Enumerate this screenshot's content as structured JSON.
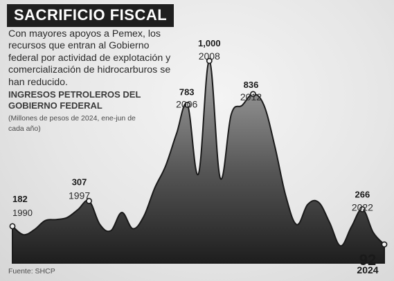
{
  "header": {
    "title": "SACRIFICIO FISCAL",
    "intro": "Con mayores apoyos a Pemex, los recursos que entran al Gobierno federal por actividad de explotación y comercialización de hidrocarburos se han reducido.",
    "chart_title": "INGRESOS PETROLEROS DEL GOBIERNO FEDERAL",
    "chart_subtitle": "(Millones de pesos de 2024, ene-jun de cada año)",
    "source": "Fuente: SHCP"
  },
  "colors": {
    "area_dark": "#2b2b2b",
    "area_light": "#9a9a9a",
    "title_bg": "#1f1f1f"
  },
  "chart_data": {
    "type": "area",
    "title": "INGRESOS PETROLEROS DEL GOBIERNO FEDERAL",
    "subtitle": "(Millones de pesos de 2024, ene-jun de cada año)",
    "unit": "Millones de pesos de 2024",
    "xlim": [
      1990,
      2024
    ],
    "ylim": [
      0,
      1000
    ],
    "grid": false,
    "x": [
      1990,
      1991,
      1992,
      1993,
      1994,
      1995,
      1996,
      1997,
      1998,
      1999,
      2000,
      2001,
      2002,
      2003,
      2004,
      2005,
      2006,
      2007,
      2008,
      2009,
      2010,
      2011,
      2012,
      2013,
      2014,
      2015,
      2016,
      2017,
      2018,
      2019,
      2020,
      2021,
      2022,
      2023,
      2024
    ],
    "y": [
      182,
      140,
      165,
      210,
      215,
      225,
      265,
      307,
      190,
      160,
      250,
      170,
      230,
      370,
      480,
      640,
      783,
      440,
      1000,
      420,
      735,
      780,
      836,
      780,
      575,
      330,
      190,
      290,
      300,
      200,
      85,
      180,
      266,
      150,
      92
    ],
    "annotations": [
      {
        "x": 1990,
        "value": "182",
        "year": "1990"
      },
      {
        "x": 1997,
        "value": "307",
        "year": "1997"
      },
      {
        "x": 2006,
        "value": "783",
        "year": "2006"
      },
      {
        "x": 2008,
        "value": "1,000",
        "year": "2008"
      },
      {
        "x": 2012,
        "value": "836",
        "year": "2012"
      },
      {
        "x": 2022,
        "value": "266",
        "year": "2022"
      },
      {
        "x": 2024,
        "value": "92",
        "year": "2024"
      }
    ]
  }
}
